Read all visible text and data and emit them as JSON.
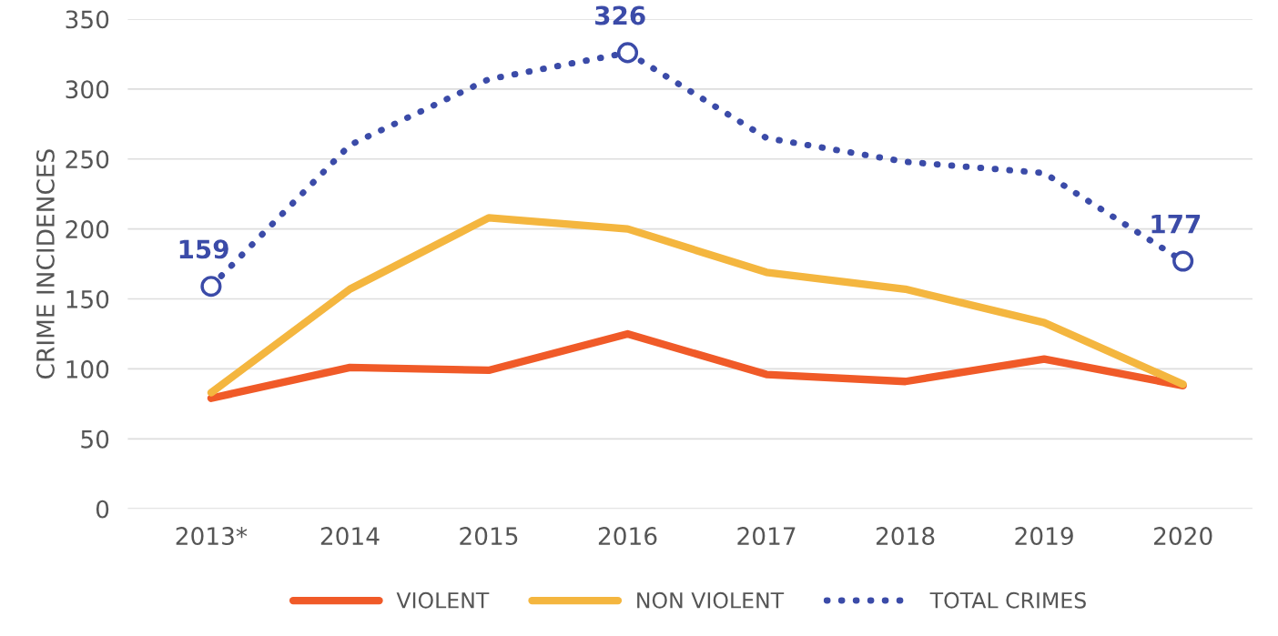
{
  "chart_data": {
    "type": "line",
    "ylabel": "CRIME INCIDENCES",
    "categories": [
      "2013*",
      "2014",
      "2015",
      "2016",
      "2017",
      "2018",
      "2019",
      "2020"
    ],
    "series": [
      {
        "name": "VIOLENT",
        "color": "#f05a28",
        "values": [
          79,
          101,
          99,
          125,
          96,
          91,
          107,
          88
        ],
        "line_style": "solid",
        "marker": "none"
      },
      {
        "name": "NON VIOLENT",
        "color": "#f4b63f",
        "values": [
          83,
          157,
          208,
          200,
          169,
          157,
          133,
          89
        ],
        "line_style": "solid",
        "marker": "none"
      },
      {
        "name": "TOTAL CRIMES",
        "color": "#3b4ba8",
        "values": [
          159,
          260,
          307,
          326,
          265,
          248,
          240,
          177
        ],
        "line_style": "dotted",
        "marker": "none"
      },
      {
        "type": "scatter",
        "color": "#3b4ba8",
        "values": [
          159,
          null,
          null,
          326,
          null,
          null,
          null,
          177
        ],
        "marker": "circle",
        "value_labels": [
          "159",
          null,
          null,
          "326",
          null,
          null,
          null,
          "177"
        ]
      }
    ],
    "ylim": [
      0,
      350
    ],
    "yticks": [
      0,
      50,
      100,
      150,
      200,
      250,
      300,
      350
    ],
    "grid": "y",
    "legend": "bottom"
  }
}
